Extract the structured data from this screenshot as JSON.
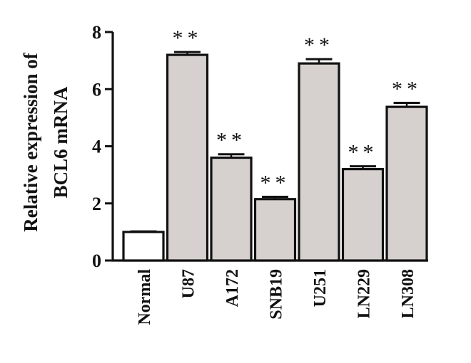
{
  "chart_data": {
    "type": "bar",
    "title": "",
    "xlabel": "",
    "ylabel_lines": [
      "Relative expression of",
      "BCL6 mRNA"
    ],
    "categories": [
      "Normal",
      "U87",
      "A172",
      "SNB19",
      "U251",
      "LN229",
      "LN308"
    ],
    "values": [
      1.0,
      7.2,
      3.6,
      2.15,
      6.9,
      3.2,
      5.38
    ],
    "errors": [
      0.02,
      0.1,
      0.12,
      0.08,
      0.15,
      0.1,
      0.14
    ],
    "significance": [
      "",
      "**",
      "**",
      "**",
      "**",
      "**",
      "**"
    ],
    "ylim": [
      0,
      8
    ],
    "yticks": [
      "0",
      "2",
      "4",
      "6",
      "8"
    ],
    "grid": false,
    "legend": "none",
    "colors": {
      "control_bar": "#ffffff",
      "bar": "#d6d1cf",
      "stroke": "#111111"
    }
  }
}
